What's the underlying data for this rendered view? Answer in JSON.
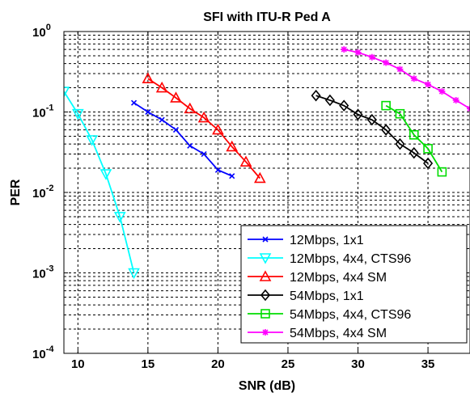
{
  "chart_data": {
    "type": "line",
    "title": "SFI with ITU-R Ped A",
    "xlabel": "SNR (dB)",
    "ylabel": "PER",
    "xlim": [
      9,
      38
    ],
    "ylim": [
      0.0001,
      1
    ],
    "yscale": "log",
    "grid": true,
    "legend_position": "bottom-right",
    "x_ticks": [
      10,
      15,
      20,
      25,
      30,
      35
    ],
    "x_tick_labels": [
      "10",
      "15",
      "20",
      "25",
      "30",
      "35"
    ],
    "y_ticks": [
      {
        "value": 1,
        "base": "10",
        "exp": "0"
      },
      {
        "value": 0.1,
        "base": "10",
        "exp": "-1"
      },
      {
        "value": 0.01,
        "base": "10",
        "exp": "-2"
      },
      {
        "value": 0.001,
        "base": "10",
        "exp": "-3"
      },
      {
        "value": 0.0001,
        "base": "10",
        "exp": "-4"
      }
    ],
    "series": [
      {
        "name": "12Mbps, 1x1",
        "color": "#0000ff",
        "marker": "x",
        "x": [
          14,
          15,
          16,
          17,
          18,
          19,
          20,
          21
        ],
        "y": [
          0.13,
          0.1,
          0.08,
          0.06,
          0.038,
          0.03,
          0.019,
          0.016
        ]
      },
      {
        "name": "12Mbps, 4x4, CTS96",
        "color": "#00ffff",
        "marker": "triangle-down",
        "x": [
          9,
          10,
          11,
          12,
          13,
          14
        ],
        "y": [
          0.18,
          0.095,
          0.045,
          0.017,
          0.005,
          0.001
        ]
      },
      {
        "name": "12Mbps, 4x4 SM",
        "color": "#ff0000",
        "marker": "triangle-up",
        "x": [
          15,
          16,
          17,
          18,
          19,
          20,
          21,
          22,
          23
        ],
        "y": [
          0.26,
          0.2,
          0.15,
          0.11,
          0.085,
          0.06,
          0.037,
          0.024,
          0.015
        ]
      },
      {
        "name": "54Mbps, 1x1",
        "color": "#000000",
        "marker": "diamond",
        "x": [
          27,
          28,
          29,
          30,
          31,
          32,
          33,
          34,
          35
        ],
        "y": [
          0.16,
          0.14,
          0.12,
          0.093,
          0.08,
          0.06,
          0.04,
          0.031,
          0.023
        ]
      },
      {
        "name": "54Mbps, 4x4, CTS96",
        "color": "#00dd00",
        "marker": "square",
        "x": [
          32,
          33,
          34,
          35,
          36
        ],
        "y": [
          0.12,
          0.095,
          0.052,
          0.035,
          0.018
        ]
      },
      {
        "name": "54Mbps, 4x4 SM",
        "color": "#ff00ff",
        "marker": "star",
        "x": [
          29,
          30,
          31,
          32,
          33,
          34,
          35,
          36,
          37,
          38
        ],
        "y": [
          0.6,
          0.55,
          0.48,
          0.41,
          0.34,
          0.26,
          0.22,
          0.18,
          0.14,
          0.11
        ]
      }
    ]
  }
}
